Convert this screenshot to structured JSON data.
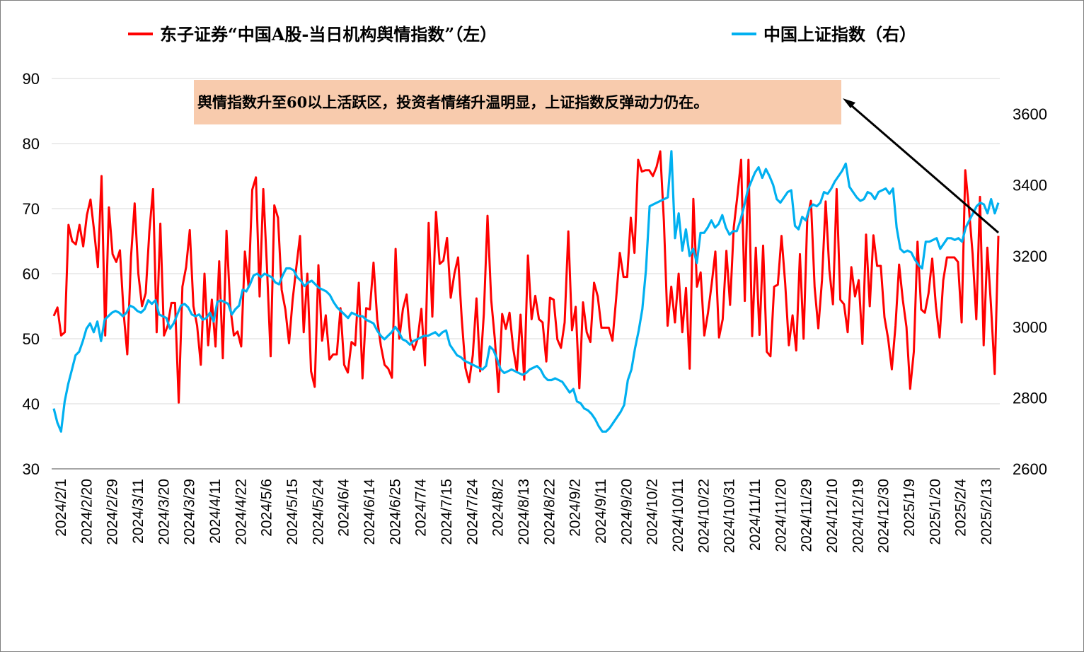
{
  "chart_data": {
    "type": "line",
    "x_ticks": [
      "2024/2/1",
      "2024/2/20",
      "2024/2/29",
      "2024/3/11",
      "2024/3/20",
      "2024/3/29",
      "2024/4/11",
      "2024/4/22",
      "2024/5/6",
      "2024/5/15",
      "2024/5/24",
      "2024/6/4",
      "2024/6/14",
      "2024/6/25",
      "2024/7/4",
      "2024/7/15",
      "2024/7/24",
      "2024/8/2",
      "2024/8/13",
      "2024/8/22",
      "2024/9/2",
      "2024/9/11",
      "2024/9/20",
      "2024/10/2",
      "2024/10/11",
      "2024/10/22",
      "2024/10/31",
      "2024/11/11",
      "2024/11/20",
      "2024/11/29",
      "2024/12/10",
      "2024/12/19",
      "2024/12/30",
      "2025/1/9",
      "2025/1/20",
      "2025/2/4",
      "2025/2/13"
    ],
    "y_left": {
      "min": 30,
      "max": 90,
      "ticks": [
        30,
        40,
        50,
        60,
        70,
        80,
        90
      ]
    },
    "y_right": {
      "min": 2600,
      "max": 3700,
      "ticks": [
        2600,
        2800,
        3000,
        3200,
        3400,
        3600
      ]
    },
    "grid": "horizontal",
    "legend_position": "top",
    "series": [
      {
        "name": "东子证券“中国A股-当日机构舆情指数”（左）",
        "axis": "left",
        "color": "#ff0000",
        "values": [
          53.5,
          54.8,
          50.5,
          51.0,
          67.5,
          65.0,
          64.5,
          67.5,
          64.2,
          69.0,
          71.4,
          66.5,
          61.0,
          75.0,
          50.5,
          70.2,
          63.0,
          61.8,
          63.6,
          54.0,
          47.6,
          62.5,
          70.8,
          60.0,
          55.0,
          57.0,
          66.5,
          73.0,
          51.0,
          67.7,
          50.5,
          52.0,
          55.5,
          55.5,
          40.2,
          58.0,
          61.0,
          66.7,
          55.0,
          52.0,
          46.0,
          60.0,
          49.0,
          56.0,
          48.8,
          61.9,
          47.0,
          66.6,
          55.0,
          50.5,
          51.1,
          48.8,
          63.4,
          58.0,
          72.9,
          74.8,
          56.5,
          73.0,
          61.0,
          47.3,
          70.5,
          68.6,
          57.5,
          54.5,
          49.3,
          56.0,
          61.0,
          65.8,
          51.0,
          60.0,
          45.0,
          42.6,
          61.3,
          49.7,
          53.6,
          46.8,
          47.6,
          47.6,
          54.7,
          46.0,
          44.8,
          49.5,
          49.0,
          58.6,
          43.9,
          54.7,
          54.5,
          61.7,
          53.0,
          48.9,
          46.0,
          45.4,
          44.0,
          63.8,
          50.0,
          54.6,
          56.8,
          50.0,
          48.3,
          50.0,
          54.6,
          45.9,
          67.8,
          53.4,
          69.5,
          61.5,
          62.0,
          65.5,
          56.3,
          60.0,
          62.5,
          53.0,
          45.5,
          43.3,
          47.5,
          56.2,
          45.0,
          53.8,
          68.9,
          56.0,
          50.0,
          41.8,
          53.8,
          51.5,
          54.0,
          48.5,
          45.0,
          53.7,
          43.7,
          62.8,
          53.0,
          56.6,
          53.0,
          52.5,
          46.5,
          56.3,
          56.0,
          49.9,
          48.6,
          52.5,
          66.5,
          51.3,
          54.9,
          42.4,
          55.6,
          51.0,
          49.5,
          58.6,
          56.5,
          51.7,
          51.7,
          51.7,
          49.7,
          56.2,
          63.2,
          59.5,
          59.5,
          68.6,
          63.2,
          77.5,
          75.7,
          75.9,
          75.9,
          75.0,
          76.4,
          78.8,
          68.0,
          52.0,
          58.0,
          52.5,
          60.0,
          51.0,
          57.8,
          45.4,
          71.5,
          58.0,
          60.2,
          50.5,
          54.0,
          58.4,
          63.4,
          50.2,
          53.0,
          63.5,
          55.2,
          67.1,
          72.0,
          77.5,
          55.8,
          77.5,
          50.4,
          64.0,
          50.6,
          64.3,
          48.0,
          47.3,
          58.0,
          58.3,
          65.8,
          58.5,
          49.0,
          53.6,
          48.2,
          63.0,
          50.0,
          68.5,
          71.2,
          57.9,
          51.6,
          59.0,
          71.1,
          60.6,
          55.3,
          73.0,
          56.0,
          55.3,
          51.0,
          61.0,
          56.5,
          59.0,
          49.2,
          66.0,
          55.0,
          65.9,
          61.2,
          61.2,
          53.3,
          50.0,
          45.3,
          52.0,
          61.4,
          56.0,
          51.8,
          42.3,
          48.0,
          64.9,
          54.5,
          54.0,
          57.0,
          62.3,
          55.0,
          50.2,
          59.0,
          62.5,
          62.5,
          62.5,
          61.8,
          52.5,
          75.9,
          70.0,
          63.0,
          53.0,
          71.8,
          49.0,
          64.0,
          55.0,
          44.6,
          65.8
        ],
        "visible": true
      },
      {
        "name": "中国上证指数（右）",
        "axis": "right",
        "color": "#00b0f0",
        "values": [
          2770,
          2730,
          2705,
          2790,
          2840,
          2880,
          2920,
          2930,
          2960,
          2995,
          3010,
          2985,
          3015,
          2960,
          3020,
          3030,
          3040,
          3045,
          3040,
          3030,
          3040,
          3060,
          3055,
          3045,
          3040,
          3050,
          3075,
          3065,
          3075,
          3035,
          3030,
          3025,
          2995,
          3010,
          3035,
          3060,
          3065,
          3055,
          3035,
          3030,
          3035,
          3020,
          3025,
          3040,
          3015,
          3070,
          3075,
          3070,
          3065,
          3035,
          3050,
          3060,
          3105,
          3100,
          3120,
          3145,
          3150,
          3140,
          3150,
          3145,
          3140,
          3125,
          3120,
          3145,
          3165,
          3165,
          3160,
          3140,
          3130,
          3115,
          3125,
          3130,
          3120,
          3110,
          3105,
          3100,
          3090,
          3070,
          3055,
          3045,
          3035,
          3025,
          3040,
          3035,
          3030,
          3030,
          3020,
          3015,
          3010,
          2990,
          2975,
          2965,
          2975,
          2985,
          3000,
          2985,
          2965,
          2960,
          2950,
          2960,
          2965,
          2970,
          2975,
          2975,
          2980,
          2985,
          2975,
          2985,
          2990,
          2950,
          2935,
          2920,
          2915,
          2905,
          2900,
          2895,
          2890,
          2885,
          2880,
          2890,
          2945,
          2935,
          2910,
          2880,
          2870,
          2875,
          2880,
          2875,
          2870,
          2865,
          2870,
          2880,
          2885,
          2890,
          2880,
          2860,
          2850,
          2850,
          2855,
          2850,
          2845,
          2830,
          2815,
          2825,
          2790,
          2785,
          2770,
          2765,
          2755,
          2740,
          2720,
          2705,
          2705,
          2715,
          2730,
          2745,
          2760,
          2780,
          2850,
          2880,
          2940,
          2990,
          3050,
          3160,
          3340,
          3345,
          3350,
          3355,
          3360,
          3365,
          3495,
          3250,
          3320,
          3215,
          3275,
          3200,
          3220,
          3180,
          3265,
          3265,
          3280,
          3300,
          3280,
          3290,
          3315,
          3280,
          3260,
          3270,
          3270,
          3300,
          3340,
          3385,
          3410,
          3435,
          3450,
          3420,
          3445,
          3425,
          3400,
          3360,
          3350,
          3365,
          3380,
          3385,
          3285,
          3275,
          3310,
          3300,
          3335,
          3345,
          3340,
          3350,
          3380,
          3375,
          3390,
          3410,
          3425,
          3440,
          3460,
          3395,
          3380,
          3365,
          3355,
          3360,
          3380,
          3375,
          3360,
          3380,
          3385,
          3390,
          3375,
          3390,
          3280,
          3220,
          3210,
          3215,
          3210,
          3190,
          3175,
          3165,
          3240,
          3240,
          3245,
          3250,
          3220,
          3235,
          3250,
          3250,
          3245,
          3250,
          3240,
          3280,
          3300,
          3320,
          3340,
          3350,
          3345,
          3320,
          3360,
          3320,
          3350
        ],
        "visible": true
      }
    ],
    "annotation": {
      "text": "舆情指数升至60以上活跃区，投资者情绪升温明显，上证指数反弹动力仍在。"
    }
  }
}
